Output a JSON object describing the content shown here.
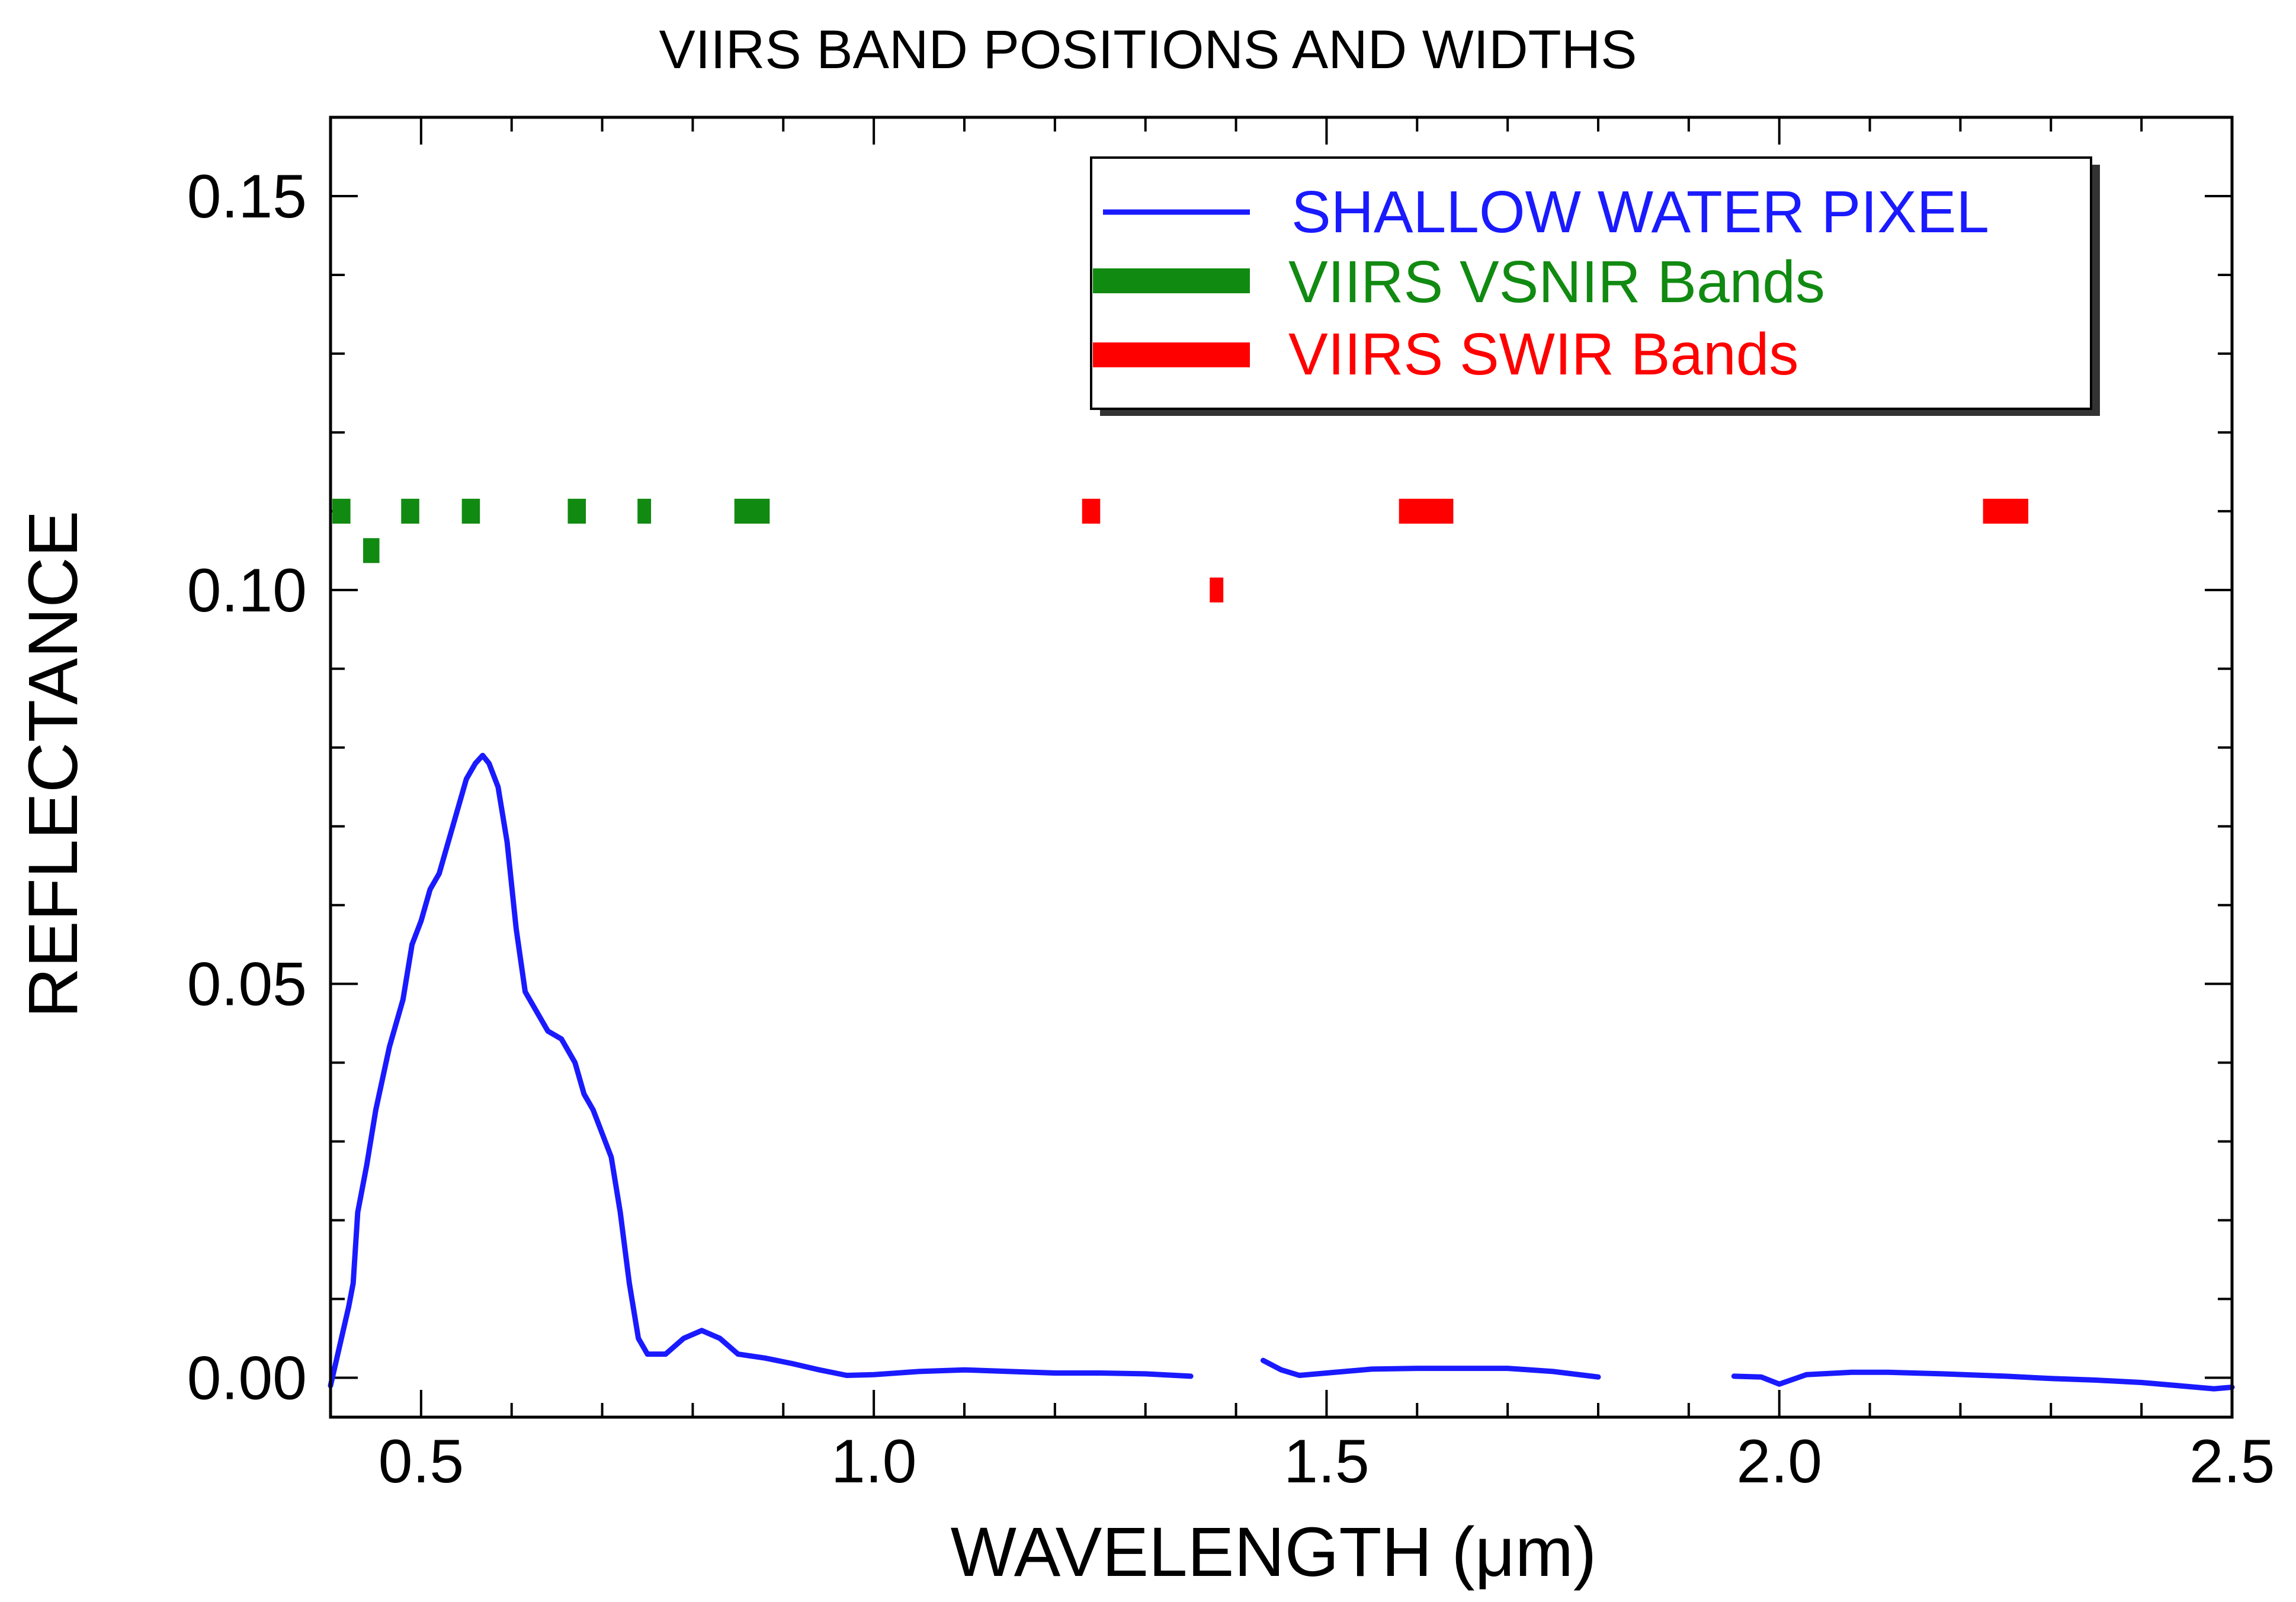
{
  "chart_data": {
    "type": "line",
    "title": "VIIRS BAND POSITIONS AND WIDTHS",
    "xlabel": "WAVELENGTH (μm)",
    "ylabel": "REFLECTANCE",
    "xlim": [
      0.4,
      2.5
    ],
    "ylim": [
      -0.005,
      0.16
    ],
    "x_ticks": [
      0.5,
      1.0,
      1.5,
      2.0,
      2.5
    ],
    "x_tick_labels": [
      "0.5",
      "1.0",
      "1.5",
      "2.0",
      "2.5"
    ],
    "y_ticks": [
      0.0,
      0.05,
      0.1,
      0.15
    ],
    "y_tick_labels": [
      "0.00",
      "0.05",
      "0.10",
      "0.15"
    ],
    "x_minor_step": 0.1,
    "y_minor_step": 0.01,
    "legend": {
      "position": "top-right",
      "entries": [
        {
          "label": "SHALLOW WATER PIXEL",
          "color": "#1a1aff",
          "style": "line"
        },
        {
          "label": "VIIRS VSNIR Bands",
          "color": "#118a11",
          "style": "thick-bar"
        },
        {
          "label": "VIIRS SWIR Bands",
          "color": "#ff0000",
          "style": "thick-bar"
        }
      ]
    },
    "series": [
      {
        "name": "SHALLOW WATER PIXEL",
        "color": "#1a1aff",
        "segments": [
          [
            [
              0.4,
              -0.001
            ],
            [
              0.41,
              0.004
            ],
            [
              0.42,
              0.009
            ],
            [
              0.425,
              0.012
            ],
            [
              0.43,
              0.021
            ],
            [
              0.44,
              0.027
            ],
            [
              0.45,
              0.034
            ],
            [
              0.465,
              0.042
            ],
            [
              0.48,
              0.048
            ],
            [
              0.49,
              0.055
            ],
            [
              0.5,
              0.058
            ],
            [
              0.51,
              0.062
            ],
            [
              0.52,
              0.064
            ],
            [
              0.53,
              0.068
            ],
            [
              0.54,
              0.072
            ],
            [
              0.55,
              0.076
            ],
            [
              0.56,
              0.078
            ],
            [
              0.568,
              0.079
            ],
            [
              0.575,
              0.078
            ],
            [
              0.585,
              0.075
            ],
            [
              0.595,
              0.068
            ],
            [
              0.605,
              0.057
            ],
            [
              0.615,
              0.049
            ],
            [
              0.63,
              0.046
            ],
            [
              0.64,
              0.044
            ],
            [
              0.655,
              0.043
            ],
            [
              0.67,
              0.04
            ],
            [
              0.68,
              0.036
            ],
            [
              0.69,
              0.034
            ],
            [
              0.7,
              0.031
            ],
            [
              0.71,
              0.028
            ],
            [
              0.72,
              0.021
            ],
            [
              0.73,
              0.012
            ],
            [
              0.74,
              0.005
            ],
            [
              0.75,
              0.003
            ],
            [
              0.77,
              0.003
            ],
            [
              0.79,
              0.005
            ],
            [
              0.81,
              0.006
            ],
            [
              0.83,
              0.005
            ],
            [
              0.85,
              0.003
            ],
            [
              0.88,
              0.0025
            ],
            [
              0.91,
              0.0018
            ],
            [
              0.94,
              0.001
            ],
            [
              0.97,
              0.0003
            ],
            [
              1.0,
              0.0004
            ],
            [
              1.05,
              0.0008
            ],
            [
              1.1,
              0.001
            ],
            [
              1.15,
              0.0008
            ],
            [
              1.2,
              0.0006
            ],
            [
              1.25,
              0.0006
            ],
            [
              1.3,
              0.0005
            ],
            [
              1.35,
              0.0002
            ]
          ],
          [
            [
              1.43,
              0.0022
            ],
            [
              1.45,
              0.001
            ],
            [
              1.47,
              0.0003
            ],
            [
              1.5,
              0.0006
            ],
            [
              1.55,
              0.0011
            ],
            [
              1.6,
              0.0012
            ],
            [
              1.65,
              0.0012
            ],
            [
              1.7,
              0.0012
            ],
            [
              1.75,
              0.0008
            ],
            [
              1.8,
              0.0001
            ]
          ],
          [
            [
              1.95,
              0.0002
            ],
            [
              1.98,
              0.0001
            ],
            [
              2.0,
              -0.0008
            ],
            [
              2.03,
              0.0004
            ],
            [
              2.08,
              0.0007
            ],
            [
              2.12,
              0.0007
            ],
            [
              2.18,
              0.0005
            ],
            [
              2.25,
              0.0002
            ],
            [
              2.3,
              -0.0001
            ],
            [
              2.35,
              -0.0003
            ],
            [
              2.4,
              -0.0006
            ],
            [
              2.45,
              -0.0011
            ],
            [
              2.48,
              -0.0014
            ],
            [
              2.5,
              -0.0012
            ]
          ]
        ]
      }
    ],
    "bands": {
      "vsnir": {
        "name": "VIIRS VSNIR Bands",
        "color": "#118a11",
        "items": [
          {
            "start": 0.402,
            "end": 0.422,
            "level": 0.11
          },
          {
            "start": 0.436,
            "end": 0.454,
            "level": 0.105
          },
          {
            "start": 0.478,
            "end": 0.498,
            "level": 0.11
          },
          {
            "start": 0.545,
            "end": 0.565,
            "level": 0.11
          },
          {
            "start": 0.662,
            "end": 0.682,
            "level": 0.11
          },
          {
            "start": 0.739,
            "end": 0.754,
            "level": 0.11
          },
          {
            "start": 0.846,
            "end": 0.885,
            "level": 0.11
          }
        ]
      },
      "swir": {
        "name": "VIIRS SWIR Bands",
        "color": "#ff0000",
        "items": [
          {
            "start": 1.23,
            "end": 1.25,
            "level": 0.11
          },
          {
            "start": 1.371,
            "end": 1.386,
            "level": 0.1
          },
          {
            "start": 1.58,
            "end": 1.64,
            "level": 0.11
          },
          {
            "start": 2.225,
            "end": 2.275,
            "level": 0.11
          }
        ]
      }
    }
  }
}
